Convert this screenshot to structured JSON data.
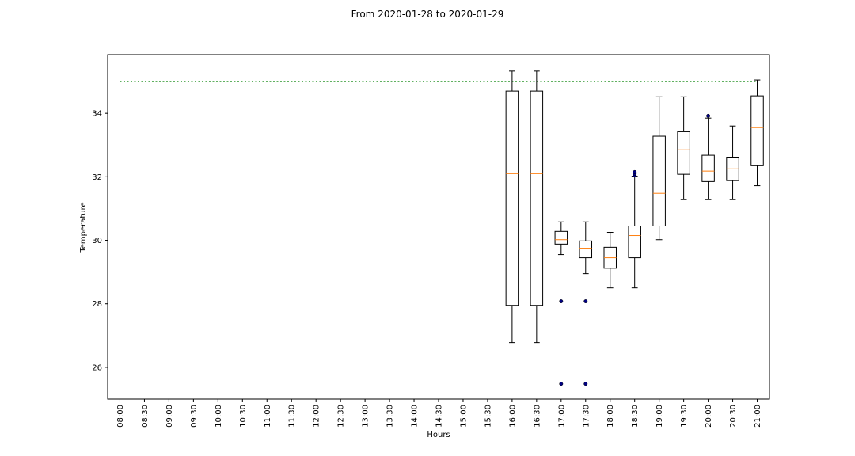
{
  "chart_data": {
    "type": "box",
    "title": "From 2020-01-28 to 2020-01-29",
    "xlabel": "Hours",
    "ylabel": "Temperature",
    "ylim": [
      25.0,
      35.85
    ],
    "yticks": [
      26,
      28,
      30,
      32,
      34
    ],
    "categories": [
      "08:00",
      "08:30",
      "09:00",
      "09:30",
      "10:00",
      "10:30",
      "11:00",
      "11:30",
      "12:00",
      "12:30",
      "13:00",
      "13:30",
      "14:00",
      "14:30",
      "15:00",
      "15:30",
      "16:00",
      "16:30",
      "17:00",
      "17:30",
      "18:00",
      "18:30",
      "19:00",
      "19:30",
      "20:00",
      "20:30",
      "21:00"
    ],
    "threshold": 35.0,
    "threshold_color": "#008000",
    "box_color": "#000000",
    "median_color": "#ff7f0e",
    "flier_color": "#000080",
    "boxes": [
      {
        "category": "16:00",
        "whisker_low": 26.78,
        "q1": 27.95,
        "median": 32.1,
        "q3": 34.7,
        "whisker_high": 35.33,
        "fliers": []
      },
      {
        "category": "16:30",
        "whisker_low": 26.78,
        "q1": 27.95,
        "median": 32.1,
        "q3": 34.7,
        "whisker_high": 35.33,
        "fliers": []
      },
      {
        "category": "17:00",
        "whisker_low": 29.55,
        "q1": 29.88,
        "median": 30.02,
        "q3": 30.28,
        "whisker_high": 30.58,
        "fliers": [
          28.08,
          25.48
        ]
      },
      {
        "category": "17:30",
        "whisker_low": 28.95,
        "q1": 29.45,
        "median": 29.75,
        "q3": 29.98,
        "whisker_high": 30.58,
        "fliers": [
          28.08,
          25.48
        ]
      },
      {
        "category": "18:00",
        "whisker_low": 28.5,
        "q1": 29.12,
        "median": 29.45,
        "q3": 29.78,
        "whisker_high": 30.25,
        "fliers": []
      },
      {
        "category": "18:30",
        "whisker_low": 28.5,
        "q1": 29.45,
        "median": 30.15,
        "q3": 30.45,
        "whisker_high": 32.02,
        "fliers": [
          32.05,
          32.1,
          32.15
        ]
      },
      {
        "category": "19:00",
        "whisker_low": 30.02,
        "q1": 30.45,
        "median": 31.48,
        "q3": 33.28,
        "whisker_high": 34.52,
        "fliers": []
      },
      {
        "category": "19:30",
        "whisker_low": 31.28,
        "q1": 32.08,
        "median": 32.85,
        "q3": 33.42,
        "whisker_high": 34.52,
        "fliers": []
      },
      {
        "category": "20:00",
        "whisker_low": 31.28,
        "q1": 31.85,
        "median": 32.18,
        "q3": 32.68,
        "whisker_high": 33.85,
        "fliers": [
          33.92
        ]
      },
      {
        "category": "20:30",
        "whisker_low": 31.28,
        "q1": 31.88,
        "median": 32.25,
        "q3": 32.62,
        "whisker_high": 33.6,
        "fliers": []
      },
      {
        "category": "21:00",
        "whisker_low": 31.72,
        "q1": 32.35,
        "median": 33.55,
        "q3": 34.55,
        "whisker_high": 35.05,
        "fliers": []
      }
    ]
  }
}
